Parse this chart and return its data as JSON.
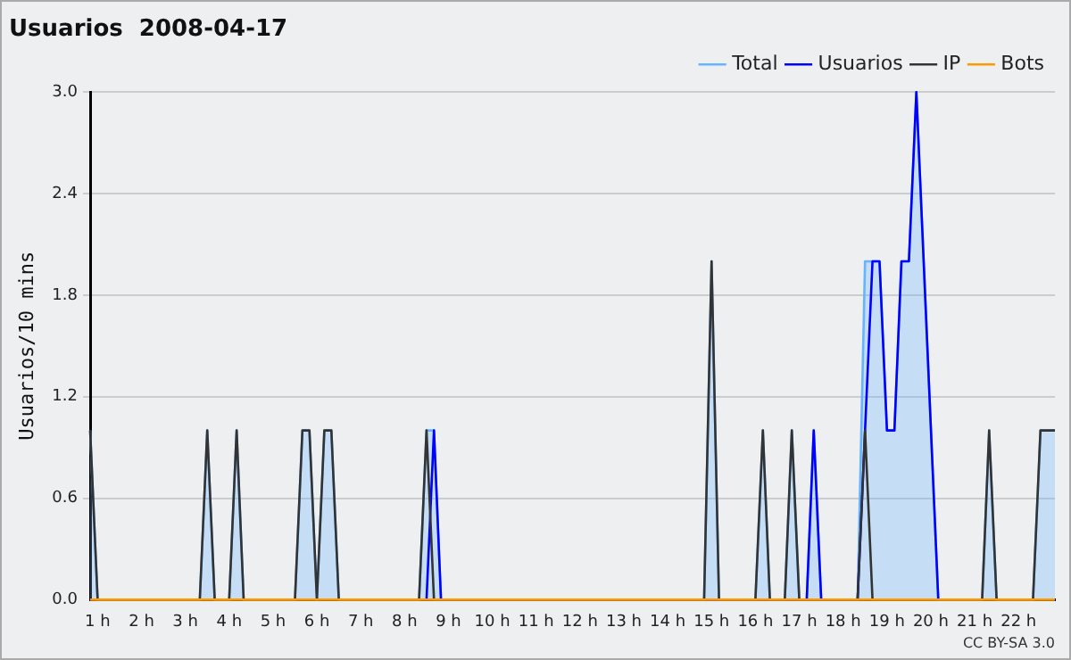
{
  "chart_data": {
    "type": "line",
    "title": "Usuarios  2008-04-17",
    "ylabel": "Usuarios/10 mins",
    "xlim": [
      0.83,
      22.83
    ],
    "xticks": [
      {
        "value": 1,
        "label": "1 h"
      },
      {
        "value": 2,
        "label": "2 h"
      },
      {
        "value": 3,
        "label": "3 h"
      },
      {
        "value": 4,
        "label": "4 h"
      },
      {
        "value": 5,
        "label": "5 h"
      },
      {
        "value": 6,
        "label": "6 h"
      },
      {
        "value": 7,
        "label": "7 h"
      },
      {
        "value": 8,
        "label": "8 h"
      },
      {
        "value": 9,
        "label": "9 h"
      },
      {
        "value": 10,
        "label": "10 h"
      },
      {
        "value": 11,
        "label": "11 h"
      },
      {
        "value": 12,
        "label": "12 h"
      },
      {
        "value": 13,
        "label": "13 h"
      },
      {
        "value": 14,
        "label": "14 h"
      },
      {
        "value": 15,
        "label": "15 h"
      },
      {
        "value": 16,
        "label": "16 h"
      },
      {
        "value": 17,
        "label": "17 h"
      },
      {
        "value": 18,
        "label": "18 h"
      },
      {
        "value": 19,
        "label": "19 h"
      },
      {
        "value": 20,
        "label": "20 h"
      },
      {
        "value": 21,
        "label": "21 h"
      },
      {
        "value": 22,
        "label": "22 h"
      }
    ],
    "ylim": [
      0,
      3
    ],
    "yticks": [
      {
        "value": 0,
        "label": "0.0"
      },
      0.6,
      1.2,
      1.8,
      2.4,
      {
        "value": 3,
        "label": "3.0"
      }
    ],
    "grid": "y",
    "legend": "top right",
    "marker": "none",
    "annotations": [
      "CC BY-SA 3.0"
    ],
    "series": [
      {
        "name": "Total",
        "type": "area",
        "color": "#66b3ff",
        "x": [
          0.83,
          1.0,
          3.33,
          3.5,
          3.67,
          4.0,
          4.17,
          4.33,
          5.5,
          5.67,
          5.83,
          6.0,
          6.17,
          6.33,
          6.5,
          8.33,
          8.5,
          8.67,
          8.83,
          14.83,
          15.0,
          15.17,
          16.0,
          16.17,
          16.33,
          16.67,
          16.83,
          17.0,
          17.17,
          17.33,
          17.5,
          18.33,
          18.5,
          18.67,
          18.83,
          19.0,
          19.17,
          19.33,
          19.5,
          19.67,
          20.17,
          21.17,
          21.33,
          21.5,
          22.33,
          22.5,
          22.83
        ],
        "values": [
          1,
          0,
          0,
          1,
          0,
          0,
          1,
          0,
          0,
          1,
          1,
          0,
          1,
          1,
          0,
          0,
          1,
          1,
          0,
          0,
          2,
          0,
          0,
          1,
          0,
          0,
          1,
          0,
          0,
          1,
          0,
          0,
          2,
          2,
          2,
          1,
          1,
          2,
          2,
          3,
          0,
          0,
          1,
          0,
          0,
          1,
          1
        ]
      },
      {
        "name": "Usuarios",
        "color": "#0000ff",
        "x": [
          8.5,
          8.67,
          8.83,
          17.17,
          17.33,
          17.5,
          18.33,
          18.67,
          18.83,
          19.0,
          19.17,
          19.33,
          19.5,
          19.67,
          20.17
        ],
        "values": [
          0,
          1,
          0,
          0,
          1,
          0,
          0,
          2,
          2,
          1,
          1,
          2,
          2,
          3,
          0
        ]
      },
      {
        "name": "IP",
        "color": "#333333",
        "x": [
          0.83,
          1.0,
          3.33,
          3.5,
          3.67,
          4.0,
          4.17,
          4.33,
          5.5,
          5.67,
          5.83,
          6.0,
          6.17,
          6.33,
          6.5,
          8.33,
          8.5,
          8.67,
          14.83,
          15.0,
          15.17,
          16.0,
          16.17,
          16.33,
          16.67,
          16.83,
          17.0,
          18.33,
          18.5,
          18.67,
          21.17,
          21.33,
          21.5,
          22.33,
          22.5,
          22.83
        ],
        "values": [
          1,
          0,
          0,
          1,
          0,
          0,
          1,
          0,
          0,
          1,
          1,
          0,
          1,
          1,
          0,
          0,
          1,
          0,
          0,
          2,
          0,
          0,
          1,
          0,
          0,
          1,
          0,
          0,
          1,
          0,
          0,
          1,
          0,
          0,
          1,
          1
        ]
      },
      {
        "name": "Bots",
        "color": "#ff9900",
        "x": [
          0.83,
          22.83
        ],
        "values": [
          0,
          0
        ]
      }
    ]
  }
}
